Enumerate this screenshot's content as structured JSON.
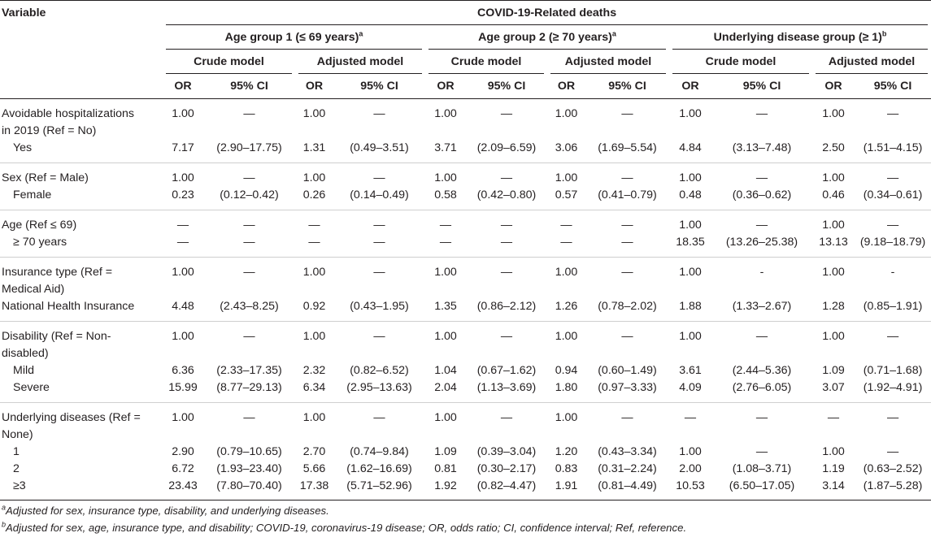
{
  "header": {
    "variable": "Variable",
    "title": "COVID-19-Related deaths",
    "groups": [
      {
        "label": "Age group 1 (≤ 69 years)",
        "sup": "a"
      },
      {
        "label": "Age group 2 (≥ 70 years)",
        "sup": "a"
      },
      {
        "label": "Underlying disease group (≥ 1)",
        "sup": "b"
      }
    ],
    "models": [
      "Crude model",
      "Adjusted model"
    ],
    "or": "OR",
    "ci": "95% CI"
  },
  "rows": [
    {
      "label": "Avoidable hospitalizations",
      "sub": false,
      "cells": [
        "1.00",
        "—",
        "1.00",
        "—",
        "1.00",
        "—",
        "1.00",
        "—",
        "1.00",
        "—",
        "1.00",
        "—"
      ]
    },
    {
      "label": "in 2019 (Ref = No)",
      "sub": false,
      "cells": [
        "",
        "",
        "",
        "",
        "",
        "",
        "",
        "",
        "",
        "",
        "",
        ""
      ]
    },
    {
      "label": "Yes",
      "sub": true,
      "cells": [
        "7.17",
        "(2.90–17.75)",
        "1.31",
        "(0.49–3.51)",
        "3.71",
        "(2.09–6.59)",
        "3.06",
        "(1.69–5.54)",
        "4.84",
        "(3.13–7.48)",
        "2.50",
        "(1.51–4.15)"
      ]
    },
    {
      "label": "Sex (Ref = Male)",
      "sub": false,
      "cells": [
        "1.00",
        "—",
        "1.00",
        "—",
        "1.00",
        "—",
        "1.00",
        "—",
        "1.00",
        "—",
        "1.00",
        "—"
      ]
    },
    {
      "label": "Female",
      "sub": true,
      "cells": [
        "0.23",
        "(0.12–0.42)",
        "0.26",
        "(0.14–0.49)",
        "0.58",
        "(0.42–0.80)",
        "0.57",
        "(0.41–0.79)",
        "0.48",
        "(0.36–0.62)",
        "0.46",
        "(0.34–0.61)"
      ]
    },
    {
      "label": "Age (Ref ≤ 69)",
      "sub": false,
      "cells": [
        "—",
        "—",
        "—",
        "—",
        "—",
        "—",
        "—",
        "—",
        "1.00",
        "—",
        "1.00",
        "—"
      ]
    },
    {
      "label": "≥ 70 years",
      "sub": true,
      "cells": [
        "—",
        "—",
        "—",
        "—",
        "—",
        "—",
        "—",
        "—",
        "18.35",
        "(13.26–25.38)",
        "13.13",
        "(9.18–18.79)"
      ]
    },
    {
      "label": "Insurance type (Ref =",
      "sub": false,
      "cells": [
        "1.00",
        "—",
        "1.00",
        "—",
        "1.00",
        "—",
        "1.00",
        "—",
        "1.00",
        "-",
        "1.00",
        "-"
      ]
    },
    {
      "label": "Medical Aid)",
      "sub": false,
      "cells": [
        "",
        "",
        "",
        "",
        "",
        "",
        "",
        "",
        "",
        "",
        "",
        ""
      ]
    },
    {
      "label": "National Health Insurance",
      "sub": false,
      "cells": [
        "4.48",
        "(2.43–8.25)",
        "0.92",
        "(0.43–1.95)",
        "1.35",
        "(0.86–2.12)",
        "1.26",
        "(0.78–2.02)",
        "1.88",
        "(1.33–2.67)",
        "1.28",
        "(0.85–1.91)"
      ]
    },
    {
      "label": "Disability (Ref = Non-",
      "sub": false,
      "cells": [
        "1.00",
        "—",
        "1.00",
        "—",
        "1.00",
        "—",
        "1.00",
        "—",
        "1.00",
        "—",
        "1.00",
        "—"
      ]
    },
    {
      "label": "disabled)",
      "sub": false,
      "cells": [
        "",
        "",
        "",
        "",
        "",
        "",
        "",
        "",
        "",
        "",
        "",
        ""
      ]
    },
    {
      "label": "Mild",
      "sub": true,
      "cells": [
        "6.36",
        "(2.33–17.35)",
        "2.32",
        "(0.82–6.52)",
        "1.04",
        "(0.67–1.62)",
        "0.94",
        "(0.60–1.49)",
        "3.61",
        "(2.44–5.36)",
        "1.09",
        "(0.71–1.68)"
      ]
    },
    {
      "label": "Severe",
      "sub": true,
      "cells": [
        "15.99",
        "(8.77–29.13)",
        "6.34",
        "(2.95–13.63)",
        "2.04",
        "(1.13–3.69)",
        "1.80",
        "(0.97–3.33)",
        "4.09",
        "(2.76–6.05)",
        "3.07",
        "(1.92–4.91)"
      ]
    },
    {
      "label": "Underlying diseases (Ref =",
      "sub": false,
      "cells": [
        "1.00",
        "—",
        "1.00",
        "—",
        "1.00",
        "—",
        "1.00",
        "—",
        "—",
        "—",
        "—",
        "—"
      ]
    },
    {
      "label": "None)",
      "sub": false,
      "cells": [
        "",
        "",
        "",
        "",
        "",
        "",
        "",
        "",
        "",
        "",
        "",
        ""
      ]
    },
    {
      "label": "1",
      "sub": true,
      "cells": [
        "2.90",
        "(0.79–10.65)",
        "2.70",
        "(0.74–9.84)",
        "1.09",
        "(0.39–3.04)",
        "1.20",
        "(0.43–3.34)",
        "1.00",
        "—",
        "1.00",
        "—"
      ]
    },
    {
      "label": "2",
      "sub": true,
      "cells": [
        "6.72",
        "(1.93–23.40)",
        "5.66",
        "(1.62–16.69)",
        "0.81",
        "(0.30–2.17)",
        "0.83",
        "(0.31–2.24)",
        "2.00",
        "(1.08–3.71)",
        "1.19",
        "(0.63–2.52)"
      ]
    },
    {
      "label": "≥3",
      "sub": true,
      "cells": [
        "23.43",
        "(7.80–70.40)",
        "17.38",
        "(5.71–52.96)",
        "1.92",
        "(0.82–4.47)",
        "1.91",
        "(0.81–4.49)",
        "10.53",
        "(6.50–17.05)",
        "3.14",
        "(1.87–5.28)"
      ]
    }
  ],
  "footnotes": [
    {
      "sup": "a",
      "text": "Adjusted for sex, insurance type, disability, and underlying diseases."
    },
    {
      "sup": "b",
      "text": "Adjusted for sex, age, insurance type, and disability; COVID-19, coronavirus-19 disease; OR, odds ratio; CI, confidence interval; Ref, reference."
    }
  ]
}
